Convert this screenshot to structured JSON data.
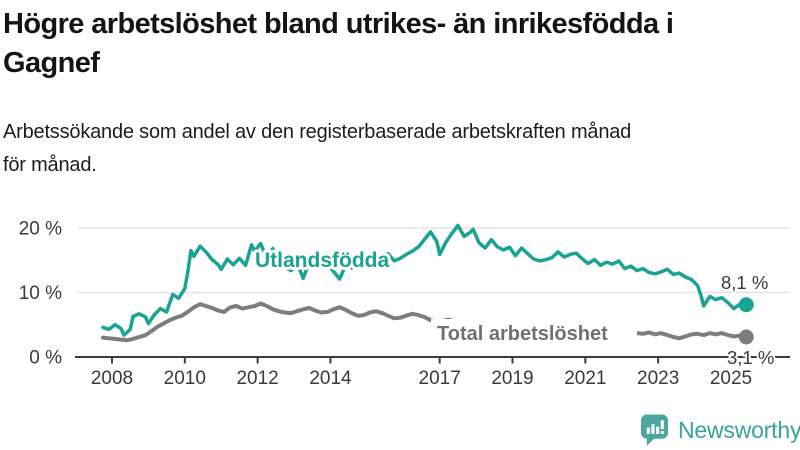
{
  "header": {
    "title_lines": [
      "Högre arbetslöshet bland utrikes- än inrikesfödda i",
      "Gagnef"
    ],
    "subtitle_lines": [
      "Arbetssökande som andel av den registerbaserade arbetskraften månad",
      "för månad."
    ]
  },
  "chart_data": {
    "type": "line",
    "title": "Högre arbetslöshet bland utrikes- än inrikesfödda i Gagnef",
    "subtitle": "Arbetssökande som andel av den registerbaserade arbetskraften månad för månad.",
    "grid": "horizontal",
    "legend_position": "inline-labels",
    "x_axis": {
      "ticks": [
        2008,
        2010,
        2012,
        2014,
        2017,
        2019,
        2021,
        2023,
        2025
      ],
      "range": [
        2007.7,
        2025.6
      ]
    },
    "y_axis": {
      "unit": "%",
      "range": [
        0,
        22
      ],
      "ticks": [
        {
          "value": 0,
          "label": "0 %"
        },
        {
          "value": 10,
          "label": "10 %"
        },
        {
          "value": 20,
          "label": "20 %"
        }
      ]
    },
    "colors": {
      "foreign_born_line": "#1aa293",
      "total_line": "#7d7d81",
      "axis": "#3d3d3d",
      "gridline": "#e3e3e3",
      "value_label": "#3b3b3b",
      "total_label_text": "#707074"
    },
    "series": [
      {
        "name": "Total arbetslöshet",
        "color": "#7d7d81",
        "end_value": 3.1,
        "end_label": "3,1 %",
        "points": [
          [
            2007.75,
            3.0
          ],
          [
            2007.92,
            2.9
          ],
          [
            2008.08,
            2.8
          ],
          [
            2008.25,
            2.7
          ],
          [
            2008.42,
            2.6
          ],
          [
            2008.58,
            2.8
          ],
          [
            2008.75,
            3.1
          ],
          [
            2008.92,
            3.4
          ],
          [
            2009.08,
            4.0
          ],
          [
            2009.25,
            4.7
          ],
          [
            2009.42,
            5.2
          ],
          [
            2009.58,
            5.7
          ],
          [
            2009.75,
            6.1
          ],
          [
            2009.92,
            6.4
          ],
          [
            2010.08,
            7.0
          ],
          [
            2010.25,
            7.7
          ],
          [
            2010.42,
            8.2
          ],
          [
            2010.58,
            7.9
          ],
          [
            2010.75,
            7.6
          ],
          [
            2010.92,
            7.2
          ],
          [
            2011.08,
            7.0
          ],
          [
            2011.25,
            7.7
          ],
          [
            2011.42,
            7.9
          ],
          [
            2011.58,
            7.5
          ],
          [
            2011.75,
            7.7
          ],
          [
            2011.92,
            7.9
          ],
          [
            2012.08,
            8.3
          ],
          [
            2012.25,
            7.9
          ],
          [
            2012.42,
            7.4
          ],
          [
            2012.58,
            7.1
          ],
          [
            2012.75,
            6.9
          ],
          [
            2012.92,
            6.8
          ],
          [
            2013.08,
            7.1
          ],
          [
            2013.25,
            7.4
          ],
          [
            2013.42,
            7.6
          ],
          [
            2013.58,
            7.2
          ],
          [
            2013.75,
            6.9
          ],
          [
            2013.92,
            7.0
          ],
          [
            2014.08,
            7.4
          ],
          [
            2014.25,
            7.7
          ],
          [
            2014.42,
            7.3
          ],
          [
            2014.58,
            6.8
          ],
          [
            2014.75,
            6.4
          ],
          [
            2014.92,
            6.5
          ],
          [
            2015.08,
            6.9
          ],
          [
            2015.25,
            7.1
          ],
          [
            2015.42,
            6.8
          ],
          [
            2015.58,
            6.4
          ],
          [
            2015.75,
            6.0
          ],
          [
            2015.92,
            6.1
          ],
          [
            2016.08,
            6.4
          ],
          [
            2016.25,
            6.7
          ],
          [
            2016.42,
            6.5
          ],
          [
            2016.58,
            6.2
          ],
          [
            2016.75,
            5.7
          ],
          [
            2016.92,
            5.5
          ],
          [
            2017.08,
            5.6
          ],
          [
            2017.25,
            5.8
          ],
          [
            2017.42,
            5.5
          ],
          [
            2017.58,
            5.2
          ],
          [
            2017.75,
            5.0
          ],
          [
            2017.92,
            5.1
          ],
          [
            2018.08,
            5.3
          ],
          [
            2018.25,
            5.1
          ],
          [
            2018.42,
            4.9
          ],
          [
            2018.58,
            4.7
          ],
          [
            2018.75,
            4.5
          ],
          [
            2018.92,
            4.6
          ],
          [
            2019.08,
            4.9
          ],
          [
            2019.25,
            4.7
          ],
          [
            2019.42,
            4.5
          ],
          [
            2019.58,
            4.3
          ],
          [
            2019.75,
            4.2
          ],
          [
            2019.92,
            4.4
          ],
          [
            2020.08,
            4.8
          ],
          [
            2020.25,
            5.1
          ],
          [
            2020.42,
            4.9
          ],
          [
            2020.58,
            4.7
          ],
          [
            2020.75,
            4.5
          ],
          [
            2020.92,
            4.6
          ],
          [
            2021.08,
            4.7
          ],
          [
            2021.25,
            4.5
          ],
          [
            2021.42,
            4.3
          ],
          [
            2021.58,
            4.1
          ],
          [
            2021.75,
            3.9
          ],
          [
            2021.92,
            4.0
          ],
          [
            2022.08,
            4.2
          ],
          [
            2022.25,
            3.9
          ],
          [
            2022.42,
            3.7
          ],
          [
            2022.58,
            3.6
          ],
          [
            2022.75,
            3.8
          ],
          [
            2022.92,
            3.5
          ],
          [
            2023.08,
            3.7
          ],
          [
            2023.25,
            3.4
          ],
          [
            2023.42,
            3.1
          ],
          [
            2023.58,
            2.9
          ],
          [
            2023.75,
            3.2
          ],
          [
            2023.92,
            3.5
          ],
          [
            2024.08,
            3.6
          ],
          [
            2024.25,
            3.4
          ],
          [
            2024.42,
            3.7
          ],
          [
            2024.58,
            3.5
          ],
          [
            2024.75,
            3.7
          ],
          [
            2024.92,
            3.4
          ],
          [
            2025.08,
            3.2
          ],
          [
            2025.25,
            3.3
          ],
          [
            2025.42,
            3.1
          ]
        ]
      },
      {
        "name": "Utlandsfödda",
        "color": "#1aa293",
        "end_value": 8.1,
        "end_label": "8,1 %",
        "points": [
          [
            2007.75,
            4.6
          ],
          [
            2007.92,
            4.3
          ],
          [
            2008.08,
            5.0
          ],
          [
            2008.25,
            4.4
          ],
          [
            2008.33,
            3.4
          ],
          [
            2008.5,
            4.3
          ],
          [
            2008.58,
            6.3
          ],
          [
            2008.75,
            6.7
          ],
          [
            2008.92,
            6.2
          ],
          [
            2009.0,
            5.2
          ],
          [
            2009.17,
            6.6
          ],
          [
            2009.33,
            7.5
          ],
          [
            2009.5,
            7.0
          ],
          [
            2009.67,
            9.7
          ],
          [
            2009.83,
            9.1
          ],
          [
            2010.0,
            10.6
          ],
          [
            2010.08,
            13.1
          ],
          [
            2010.17,
            16.5
          ],
          [
            2010.25,
            15.6
          ],
          [
            2010.42,
            17.2
          ],
          [
            2010.58,
            16.3
          ],
          [
            2010.75,
            15.1
          ],
          [
            2010.92,
            14.3
          ],
          [
            2011.0,
            13.6
          ],
          [
            2011.17,
            15.2
          ],
          [
            2011.33,
            14.3
          ],
          [
            2011.5,
            15.3
          ],
          [
            2011.67,
            14.2
          ],
          [
            2011.83,
            17.4
          ],
          [
            2011.92,
            16.4
          ],
          [
            2012.08,
            17.6
          ],
          [
            2012.25,
            15.3
          ],
          [
            2012.42,
            16.8
          ],
          [
            2012.58,
            14.7
          ],
          [
            2012.75,
            13.9
          ],
          [
            2012.92,
            13.4
          ],
          [
            2013.08,
            14.6
          ],
          [
            2013.25,
            12.2
          ],
          [
            2013.42,
            14.7
          ],
          [
            2013.58,
            15.3
          ],
          [
            2013.75,
            14.9
          ],
          [
            2013.92,
            14.4
          ],
          [
            2014.08,
            13.3
          ],
          [
            2014.25,
            12.1
          ],
          [
            2014.42,
            14.3
          ],
          [
            2014.58,
            13.8
          ],
          [
            2014.75,
            14.1
          ],
          [
            2014.92,
            15.0
          ],
          [
            2015.08,
            15.6
          ],
          [
            2015.25,
            15.0
          ],
          [
            2015.42,
            15.8
          ],
          [
            2015.58,
            16.0
          ],
          [
            2015.75,
            14.9
          ],
          [
            2015.92,
            15.3
          ],
          [
            2016.08,
            15.9
          ],
          [
            2016.25,
            16.4
          ],
          [
            2016.42,
            17.1
          ],
          [
            2016.58,
            18.2
          ],
          [
            2016.75,
            19.4
          ],
          [
            2016.92,
            17.9
          ],
          [
            2017.0,
            15.9
          ],
          [
            2017.17,
            17.8
          ],
          [
            2017.33,
            19.1
          ],
          [
            2017.5,
            20.4
          ],
          [
            2017.67,
            18.7
          ],
          [
            2017.83,
            19.3
          ],
          [
            2017.92,
            19.8
          ],
          [
            2018.08,
            17.7
          ],
          [
            2018.25,
            16.9
          ],
          [
            2018.42,
            18.2
          ],
          [
            2018.58,
            17.1
          ],
          [
            2018.75,
            16.6
          ],
          [
            2018.92,
            17.0
          ],
          [
            2019.08,
            15.7
          ],
          [
            2019.25,
            16.9
          ],
          [
            2019.42,
            16.0
          ],
          [
            2019.58,
            15.2
          ],
          [
            2019.75,
            14.9
          ],
          [
            2019.92,
            15.1
          ],
          [
            2020.08,
            15.4
          ],
          [
            2020.25,
            16.3
          ],
          [
            2020.42,
            15.5
          ],
          [
            2020.58,
            15.9
          ],
          [
            2020.75,
            16.1
          ],
          [
            2020.92,
            15.2
          ],
          [
            2021.08,
            14.5
          ],
          [
            2021.25,
            15.1
          ],
          [
            2021.42,
            14.2
          ],
          [
            2021.58,
            14.7
          ],
          [
            2021.75,
            14.4
          ],
          [
            2021.92,
            14.9
          ],
          [
            2022.08,
            13.7
          ],
          [
            2022.25,
            14.1
          ],
          [
            2022.42,
            13.4
          ],
          [
            2022.58,
            13.7
          ],
          [
            2022.75,
            13.1
          ],
          [
            2022.92,
            12.9
          ],
          [
            2023.08,
            13.2
          ],
          [
            2023.25,
            13.6
          ],
          [
            2023.42,
            12.8
          ],
          [
            2023.58,
            13.0
          ],
          [
            2023.75,
            12.4
          ],
          [
            2023.92,
            12.0
          ],
          [
            2024.08,
            11.1
          ],
          [
            2024.17,
            9.7
          ],
          [
            2024.25,
            7.9
          ],
          [
            2024.42,
            9.4
          ],
          [
            2024.58,
            8.9
          ],
          [
            2024.75,
            9.2
          ],
          [
            2024.92,
            8.4
          ],
          [
            2025.08,
            7.5
          ],
          [
            2025.25,
            8.2
          ],
          [
            2025.42,
            8.1
          ]
        ]
      }
    ]
  },
  "footer": {
    "brand": "Newsworthy",
    "brand_color": "#35a49c",
    "logo_icon": "bar-chart-speech-bubble-icon",
    "logo_icon_color": "#4ea6a1"
  }
}
